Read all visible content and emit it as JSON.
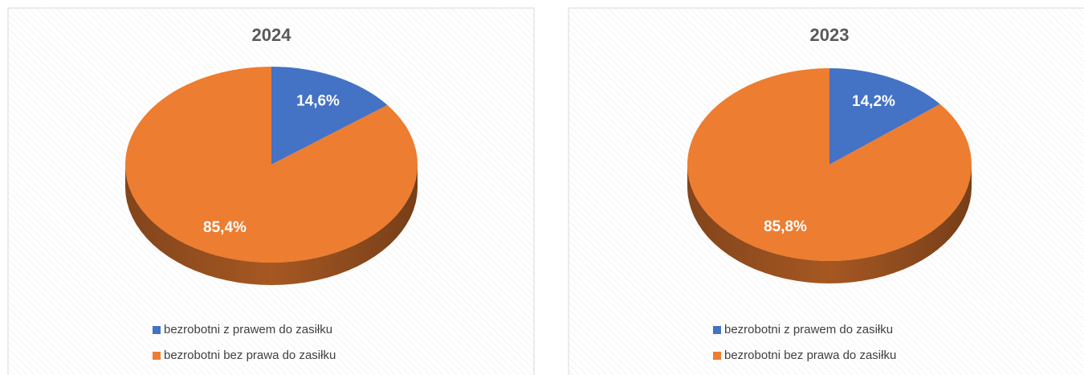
{
  "chart_data": [
    {
      "type": "pie",
      "title": "2024",
      "categories": [
        "bezrobotni z prawem do zasiłku",
        "bezrobotni bez prawa do zasiłku"
      ],
      "values": [
        14.6,
        85.4
      ],
      "value_labels": [
        "14,6%",
        "85,4%"
      ],
      "colors": [
        "#4472c4",
        "#ed7d31"
      ],
      "legend": "bottom"
    },
    {
      "type": "pie",
      "title": "2023",
      "categories": [
        "bezrobotni z prawem do zasiłku",
        "bezrobotni bez prawa do zasiłku"
      ],
      "values": [
        14.2,
        85.8
      ],
      "value_labels": [
        "14,2%",
        "85,8%"
      ],
      "colors": [
        "#4472c4",
        "#ed7d31"
      ],
      "legend": "bottom"
    }
  ]
}
